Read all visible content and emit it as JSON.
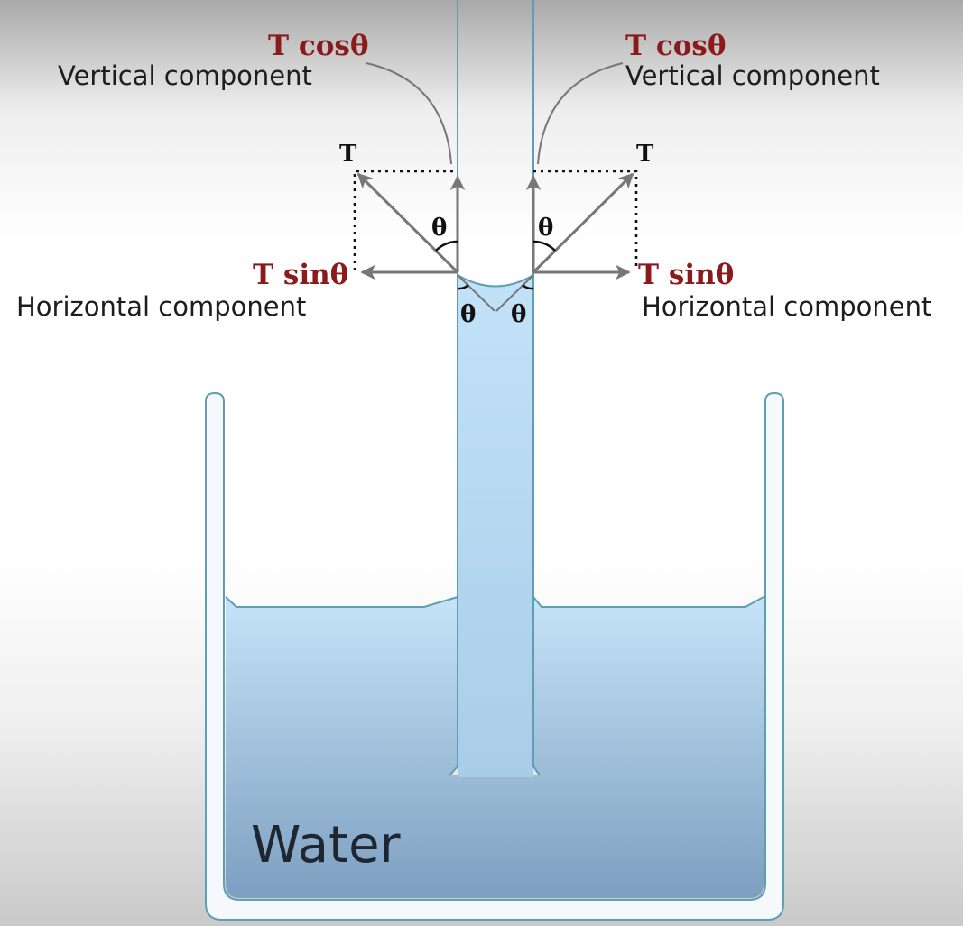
{
  "labels": {
    "left_vertical_formula": "T cosθ",
    "left_vertical_desc": "Vertical component",
    "right_vertical_formula": "T cosθ",
    "right_vertical_desc": "Vertical component",
    "left_horizontal_formula": "T sinθ",
    "left_horizontal_desc": "Horizontal component",
    "right_horizontal_formula": "T sinθ",
    "right_horizontal_desc": "Horizontal component",
    "tension_left": "T",
    "tension_right": "T",
    "theta": "θ",
    "water": "Water"
  },
  "colors": {
    "formula_red": "#8b1a1a",
    "arrow_gray": "#777777",
    "water_top": "#bfe0f6",
    "water_bottom": "#7c9fc0",
    "glass_outline": "#5f9fb3"
  }
}
